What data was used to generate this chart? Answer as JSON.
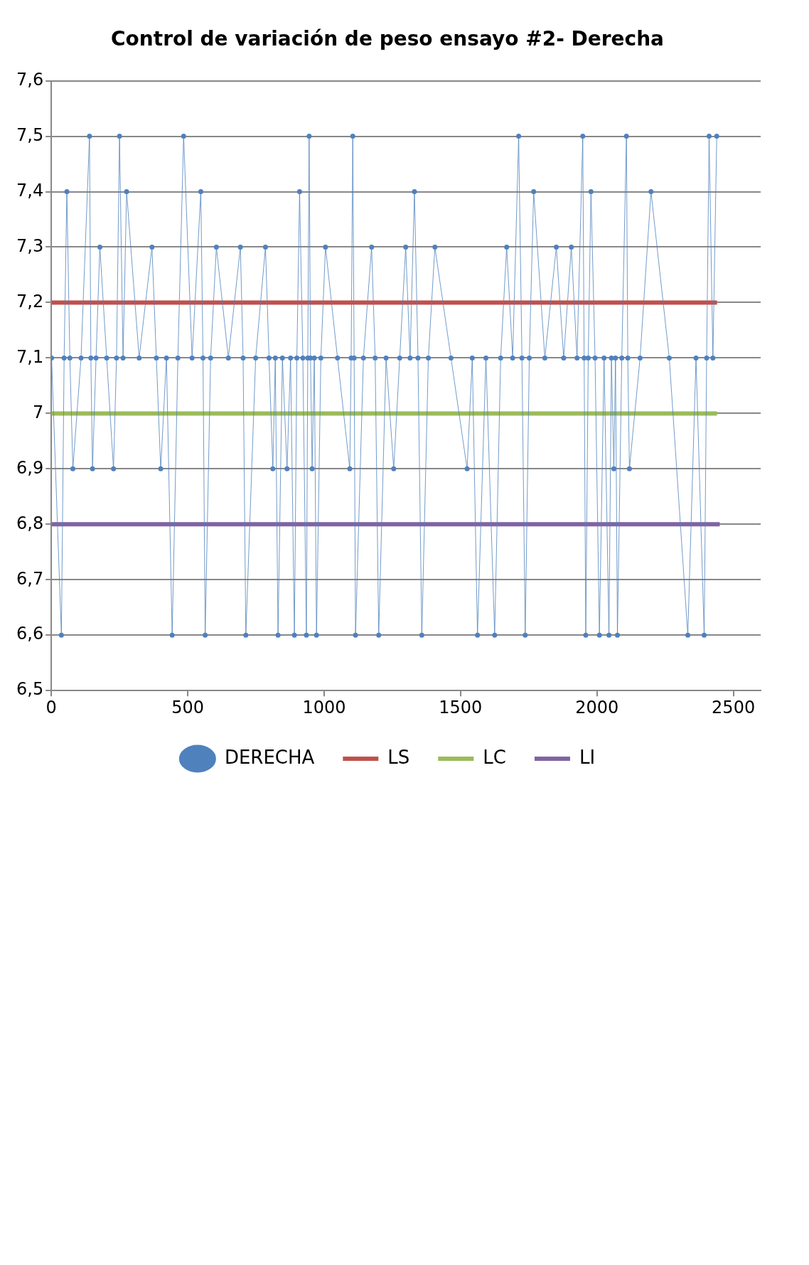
{
  "chart_data": {
    "type": "line",
    "title": "Control de variación de peso ensayo #2- Derecha",
    "xlim": [
      0,
      2600
    ],
    "xticks": [
      0,
      500,
      1000,
      1500,
      2000,
      2500
    ],
    "ylim": [
      6.5,
      7.6
    ],
    "yticks": [
      {
        "value": 6.5,
        "label": "6,5"
      },
      {
        "value": 6.6,
        "label": "6,6"
      },
      {
        "value": 6.7,
        "label": "6,7"
      },
      {
        "value": 6.8,
        "label": "6,8"
      },
      {
        "value": 6.9,
        "label": "6,9"
      },
      7,
      {
        "value": 7.1,
        "label": "7,1"
      },
      {
        "value": 7.2,
        "label": "7,2"
      },
      {
        "value": 7.3,
        "label": "7,3"
      },
      {
        "value": 7.4,
        "label": "7,4"
      },
      {
        "value": 7.5,
        "label": "7,5"
      },
      {
        "value": 7.6,
        "label": "7,6"
      }
    ],
    "grid": "y",
    "legend": "bottom",
    "marker": "circle",
    "line_style": "solid",
    "series": [
      {
        "name": "DERECHA",
        "color": "#4f81bd",
        "x": [
          1,
          37,
          47,
          57,
          68,
          79,
          109,
          140,
          145,
          151,
          164,
          178,
          203,
          228,
          239,
          250,
          263,
          276,
          322,
          369,
          385,
          401,
          422,
          443,
          464,
          485,
          516,
          548,
          556,
          564,
          584,
          605,
          649,
          693,
          703,
          713,
          749,
          785,
          798,
          812,
          821,
          831,
          847,
          864,
          877,
          891,
          900,
          910,
          922,
          935,
          940,
          945,
          950,
          956,
          964,
          972,
          988,
          1005,
          1049,
          1094,
          1099,
          1105,
          1110,
          1115,
          1144,
          1174,
          1187,
          1200,
          1227,
          1255,
          1277,
          1299,
          1315,
          1331,
          1344,
          1358,
          1382,
          1406,
          1465,
          1524,
          1543,
          1562,
          1593,
          1625,
          1647,
          1669,
          1691,
          1713,
          1725,
          1737,
          1752,
          1768,
          1809,
          1851,
          1878,
          1906,
          1927,
          1948,
          1953,
          1959,
          1968,
          1978,
          1993,
          2009,
          2026,
          2044,
          2053,
          2062,
          2068,
          2075,
          2091,
          2108,
          2113,
          2119,
          2158,
          2198,
          2265,
          2333,
          2363,
          2393,
          2402,
          2411,
          2425,
          2439
        ],
        "values": [
          7.1,
          6.6,
          7.1,
          7.4,
          7.1,
          6.9,
          7.1,
          7.5,
          7.1,
          6.9,
          7.1,
          7.3,
          7.1,
          6.9,
          7.1,
          7.5,
          7.1,
          7.4,
          7.1,
          7.3,
          7.1,
          6.9,
          7.1,
          6.6,
          7.1,
          7.5,
          7.1,
          7.4,
          7.1,
          6.6,
          7.1,
          7.3,
          7.1,
          7.3,
          7.1,
          6.6,
          7.1,
          7.3,
          7.1,
          6.9,
          7.1,
          6.6,
          7.1,
          6.9,
          7.1,
          6.6,
          7.1,
          7.4,
          7.1,
          6.6,
          7.1,
          7.5,
          7.1,
          6.9,
          7.1,
          6.6,
          7.1,
          7.3,
          7.1,
          6.9,
          7.1,
          7.5,
          7.1,
          6.6,
          7.1,
          7.3,
          7.1,
          6.6,
          7.1,
          6.9,
          7.1,
          7.3,
          7.1,
          7.4,
          7.1,
          6.6,
          7.1,
          7.3,
          7.1,
          6.9,
          7.1,
          6.6,
          7.1,
          6.6,
          7.1,
          7.3,
          7.1,
          7.5,
          7.1,
          6.6,
          7.1,
          7.4,
          7.1,
          7.3,
          7.1,
          7.3,
          7.1,
          7.5,
          7.1,
          6.6,
          7.1,
          7.4,
          7.1,
          6.6,
          7.1,
          6.6,
          7.1,
          6.9,
          7.1,
          6.6,
          7.1,
          7.5,
          7.1,
          6.9,
          7.1,
          7.4,
          7.1,
          6.6,
          7.1,
          6.6,
          7.1,
          7.5,
          7.1,
          7.5
        ]
      },
      {
        "name": "LS",
        "color": "#c0504d",
        "marker": "none",
        "x": [
          1,
          2440
        ],
        "values": [
          7.2,
          7.2
        ]
      },
      {
        "name": "LC",
        "color": "#9bbb59",
        "marker": "none",
        "x": [
          1,
          2440
        ],
        "values": [
          7,
          7
        ]
      },
      {
        "name": "LI",
        "color": "#8064a2",
        "marker": "none",
        "x": [
          1,
          2450
        ],
        "values": [
          6.8,
          6.8
        ]
      }
    ]
  }
}
